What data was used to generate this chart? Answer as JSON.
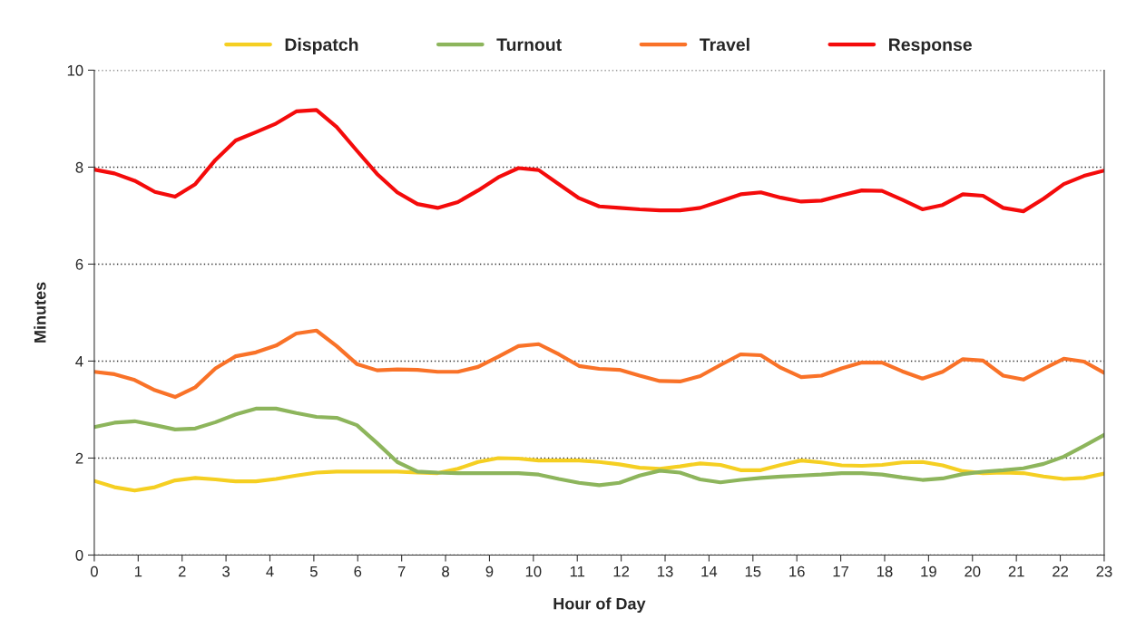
{
  "chart_data": {
    "type": "line",
    "xlabel": "Hour of Day",
    "ylabel": "Minutes",
    "x": [
      0,
      0.46,
      0.92,
      1.38,
      1.84,
      2.3,
      2.76,
      3.22,
      3.68,
      4.14,
      4.6,
      5.06,
      5.52,
      5.98,
      6.44,
      6.9,
      7.36,
      7.82,
      8.28,
      8.74,
      9.2,
      9.66,
      10.12,
      10.58,
      11.04,
      11.5,
      11.96,
      12.42,
      12.88,
      13.34,
      13.8,
      14.26,
      14.72,
      15.18,
      15.64,
      16.1,
      16.56,
      17.02,
      17.48,
      17.94,
      18.4,
      18.86,
      19.32,
      19.78,
      20.24,
      20.7,
      21.16,
      21.62,
      22.08,
      22.54,
      23
    ],
    "series": [
      {
        "name": "Dispatch",
        "color": "#f5cf22",
        "values": [
          1.53,
          1.4,
          1.33,
          1.4,
          1.54,
          1.59,
          1.56,
          1.52,
          1.52,
          1.57,
          1.64,
          1.7,
          1.72,
          1.72,
          1.72,
          1.72,
          1.7,
          1.69,
          1.78,
          1.92,
          2.0,
          1.99,
          1.95,
          1.95,
          1.95,
          1.92,
          1.87,
          1.8,
          1.78,
          1.83,
          1.89,
          1.86,
          1.75,
          1.75,
          1.86,
          1.95,
          1.91,
          1.85,
          1.84,
          1.86,
          1.91,
          1.92,
          1.85,
          1.73,
          1.69,
          1.7,
          1.69,
          1.62,
          1.57,
          1.59,
          1.68
        ]
      },
      {
        "name": "Turnout",
        "color": "#8db55c",
        "values": [
          2.64,
          2.73,
          2.76,
          2.68,
          2.59,
          2.61,
          2.74,
          2.9,
          3.02,
          3.02,
          2.93,
          2.85,
          2.83,
          2.68,
          2.31,
          1.92,
          1.72,
          1.7,
          1.69,
          1.69,
          1.69,
          1.69,
          1.66,
          1.57,
          1.49,
          1.44,
          1.49,
          1.64,
          1.74,
          1.7,
          1.56,
          1.5,
          1.55,
          1.59,
          1.62,
          1.64,
          1.66,
          1.69,
          1.69,
          1.66,
          1.6,
          1.55,
          1.58,
          1.67,
          1.72,
          1.75,
          1.79,
          1.88,
          2.03,
          2.25,
          2.48
        ]
      },
      {
        "name": "Travel",
        "color": "#f97228",
        "values": [
          3.78,
          3.73,
          3.61,
          3.4,
          3.26,
          3.46,
          3.85,
          4.1,
          4.18,
          4.32,
          4.57,
          4.63,
          4.31,
          3.94,
          3.81,
          3.83,
          3.82,
          3.78,
          3.78,
          3.88,
          4.09,
          4.31,
          4.35,
          4.14,
          3.9,
          3.84,
          3.82,
          3.7,
          3.59,
          3.58,
          3.69,
          3.92,
          4.14,
          4.12,
          3.86,
          3.67,
          3.7,
          3.85,
          3.97,
          3.97,
          3.79,
          3.64,
          3.78,
          4.04,
          4.01,
          3.7,
          3.62,
          3.84,
          4.05,
          3.99,
          3.76
        ]
      },
      {
        "name": "Response",
        "color": "#f40b0b",
        "values": [
          7.95,
          7.87,
          7.72,
          7.49,
          7.39,
          7.65,
          8.15,
          8.55,
          8.72,
          8.9,
          9.15,
          9.18,
          8.83,
          8.34,
          7.86,
          7.48,
          7.24,
          7.16,
          7.28,
          7.52,
          7.79,
          7.98,
          7.94,
          7.65,
          7.36,
          7.19,
          7.16,
          7.13,
          7.11,
          7.11,
          7.16,
          7.3,
          7.44,
          7.48,
          7.37,
          7.29,
          7.31,
          7.42,
          7.52,
          7.51,
          7.33,
          7.13,
          7.22,
          7.44,
          7.41,
          7.16,
          7.09,
          7.35,
          7.65,
          7.82,
          7.93
        ]
      }
    ],
    "xlim": [
      0,
      23
    ],
    "xticks": [
      0,
      1,
      2,
      3,
      4,
      5,
      6,
      7,
      8,
      9,
      10,
      11,
      12,
      13,
      14,
      15,
      16,
      17,
      18,
      19,
      20,
      21,
      22,
      23
    ],
    "ylim": [
      0,
      10
    ],
    "yticks": [
      0,
      2,
      4,
      6,
      8,
      10
    ],
    "grid": "y",
    "legend": "top",
    "marker": "none",
    "line_style": "solid"
  }
}
